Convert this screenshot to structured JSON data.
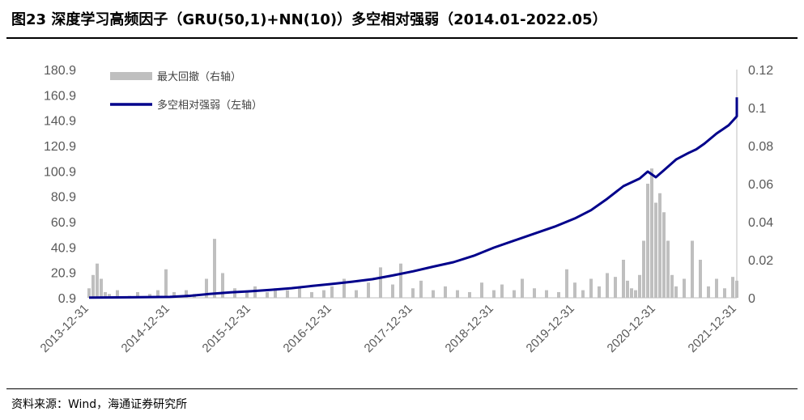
{
  "title": "图23 深度学习高频因子（GRU(50,1)+NN(10)）多空相对强弱（2014.01-2022.05）",
  "source": "资料来源：Wind，海通证券研究所",
  "chart_data": {
    "type": "line",
    "x_tick_labels": [
      "2013-12-31",
      "2014-12-31",
      "2015-12-31",
      "2016-12-31",
      "2017-12-31",
      "2018-12-31",
      "2019-12-31",
      "2020-12-31",
      "2021-12-31"
    ],
    "y_left_ticks": [
      "180.9",
      "160.9",
      "140.9",
      "120.9",
      "100.9",
      "80.9",
      "60.9",
      "40.9",
      "20.9",
      "0.9"
    ],
    "y_right_ticks": [
      "0.12",
      "0.1",
      "0.08",
      "0.06",
      "0.04",
      "0.02",
      "0"
    ],
    "y_left_range": [
      0.9,
      180.9
    ],
    "y_right_range": [
      0,
      0.12
    ],
    "grid": false,
    "legend_position": "top-left",
    "series": [
      {
        "name": "最大回撤（右轴）",
        "type": "area",
        "axis": "right",
        "color": "#BFBFBF",
        "x": [
          2014.0,
          2014.05,
          2014.1,
          2014.15,
          2014.2,
          2014.25,
          2014.35,
          2014.5,
          2014.6,
          2014.75,
          2014.85,
          2014.95,
          2015.05,
          2015.2,
          2015.3,
          2015.45,
          2015.55,
          2015.65,
          2015.8,
          2015.95,
          2016.05,
          2016.2,
          2016.3,
          2016.45,
          2016.6,
          2016.75,
          2016.9,
          2017.0,
          2017.15,
          2017.3,
          2017.45,
          2017.6,
          2017.75,
          2017.85,
          2018.0,
          2018.1,
          2018.25,
          2018.4,
          2018.55,
          2018.7,
          2018.85,
          2019.0,
          2019.1,
          2019.25,
          2019.35,
          2019.5,
          2019.65,
          2019.8,
          2019.9,
          2020.0,
          2020.1,
          2020.2,
          2020.3,
          2020.4,
          2020.5,
          2020.6,
          2020.65,
          2020.7,
          2020.75,
          2020.8,
          2020.85,
          2020.9,
          2020.95,
          2021.0,
          2021.05,
          2021.1,
          2021.15,
          2021.2,
          2021.25,
          2021.35,
          2021.45,
          2021.55,
          2021.65,
          2021.75,
          2021.85,
          2021.95,
          2022.05,
          2022.2,
          2022.33
        ],
        "values": [
          0.005,
          0.012,
          0.018,
          0.01,
          0.003,
          0.002,
          0.004,
          0.001,
          0.003,
          0.002,
          0.004,
          0.015,
          0.003,
          0.004,
          0.002,
          0.01,
          0.031,
          0.013,
          0.005,
          0.003,
          0.006,
          0.003,
          0.005,
          0.004,
          0.006,
          0.003,
          0.004,
          0.006,
          0.01,
          0.004,
          0.008,
          0.016,
          0.007,
          0.018,
          0.005,
          0.009,
          0.004,
          0.006,
          0.004,
          0.003,
          0.008,
          0.004,
          0.007,
          0.004,
          0.01,
          0.005,
          0.004,
          0.003,
          0.015,
          0.008,
          0.004,
          0.01,
          0.006,
          0.013,
          0.011,
          0.02,
          0.009,
          0.005,
          0.004,
          0.012,
          0.03,
          0.06,
          0.068,
          0.05,
          0.055,
          0.045,
          0.03,
          0.012,
          0.006,
          0.01,
          0.03,
          0.02,
          0.006,
          0.01,
          0.005,
          0.011,
          0.006,
          0.009,
          0.004
        ]
      },
      {
        "name": "多空相对强弱（左轴）",
        "type": "line",
        "axis": "left",
        "color": "#00008B",
        "x": [
          2014.0,
          2014.5,
          2015.0,
          2015.25,
          2015.5,
          2015.75,
          2016.0,
          2016.25,
          2016.5,
          2016.75,
          2017.0,
          2017.25,
          2017.5,
          2017.75,
          2018.0,
          2018.25,
          2018.5,
          2018.75,
          2019.0,
          2019.25,
          2019.5,
          2019.75,
          2020.0,
          2020.2,
          2020.4,
          2020.6,
          2020.8,
          2020.9,
          2021.0,
          2021.1,
          2021.25,
          2021.4,
          2021.5,
          2021.6,
          2021.75,
          2021.9,
          2022.0,
          2022.1,
          2022.2,
          2022.33
        ],
        "values": [
          1.0,
          1.3,
          1.6,
          2.5,
          4.0,
          5.2,
          6.1,
          7.2,
          8.5,
          10.2,
          11.8,
          13.6,
          15.6,
          18.5,
          21.8,
          25.5,
          29.0,
          34.0,
          40.5,
          46.0,
          51.5,
          57.0,
          63.5,
          70.0,
          79.0,
          89.0,
          95.0,
          100.5,
          96.0,
          101.5,
          110.0,
          115.0,
          118.0,
          122.5,
          130.5,
          137.0,
          144.0,
          149.5,
          152.0,
          159.0
        ]
      }
    ]
  }
}
